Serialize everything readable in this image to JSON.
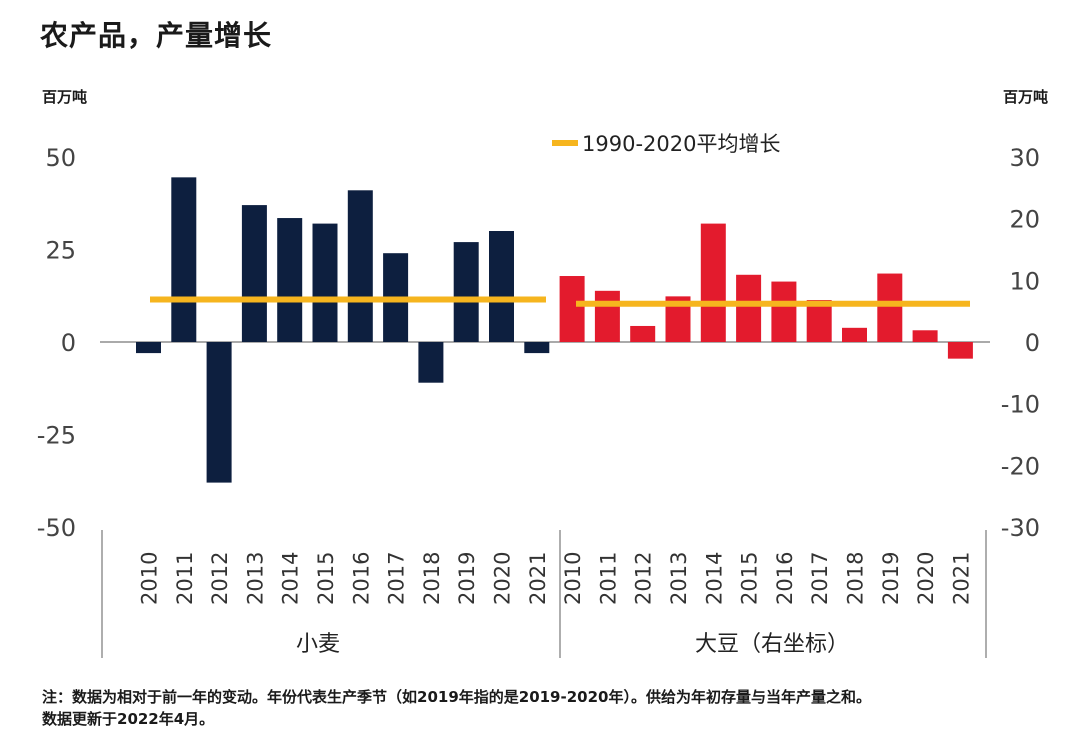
{
  "title": "农产品，产量增长",
  "units": {
    "left": "百万吨",
    "right": "百万吨"
  },
  "legend": {
    "label": "1990-2020平均增长",
    "color": "#f6b51e"
  },
  "footnote": [
    "注：数据为相对于前一年的变动。年份代表生产季节（如2019年指的是2019-2020年）。供给为年初存量与当年产量之和。",
    "数据更新于2022年4月。"
  ],
  "chart_data": [
    {
      "type": "bar",
      "group_label": "小麦",
      "axis": "left",
      "color": "#0d1f3f",
      "categories": [
        "2010",
        "2011",
        "2012",
        "2013",
        "2014",
        "2015",
        "2016",
        "2017",
        "2018",
        "2019",
        "2020",
        "2021"
      ],
      "values": [
        -3,
        44.5,
        -38,
        37,
        33.5,
        32,
        41,
        24,
        -11,
        27,
        30,
        -3
      ],
      "average": 11.5,
      "ylim": [
        -50,
        50
      ],
      "yticks": [
        50,
        25,
        0,
        -25,
        -50
      ]
    },
    {
      "type": "bar",
      "group_label": "大豆（右坐标）",
      "axis": "right",
      "color": "#e31b2d",
      "categories": [
        "2010",
        "2011",
        "2012",
        "2013",
        "2014",
        "2015",
        "2016",
        "2017",
        "2018",
        "2019",
        "2020",
        "2021"
      ],
      "values": [
        10.7,
        8.3,
        2.6,
        7.4,
        19.2,
        10.9,
        9.8,
        6.8,
        2.3,
        11.1,
        1.9,
        -2.7
      ],
      "average": 6.2,
      "ylim": [
        -30,
        30
      ],
      "yticks": [
        30,
        20,
        10,
        0,
        -10,
        -20,
        -30
      ]
    }
  ]
}
